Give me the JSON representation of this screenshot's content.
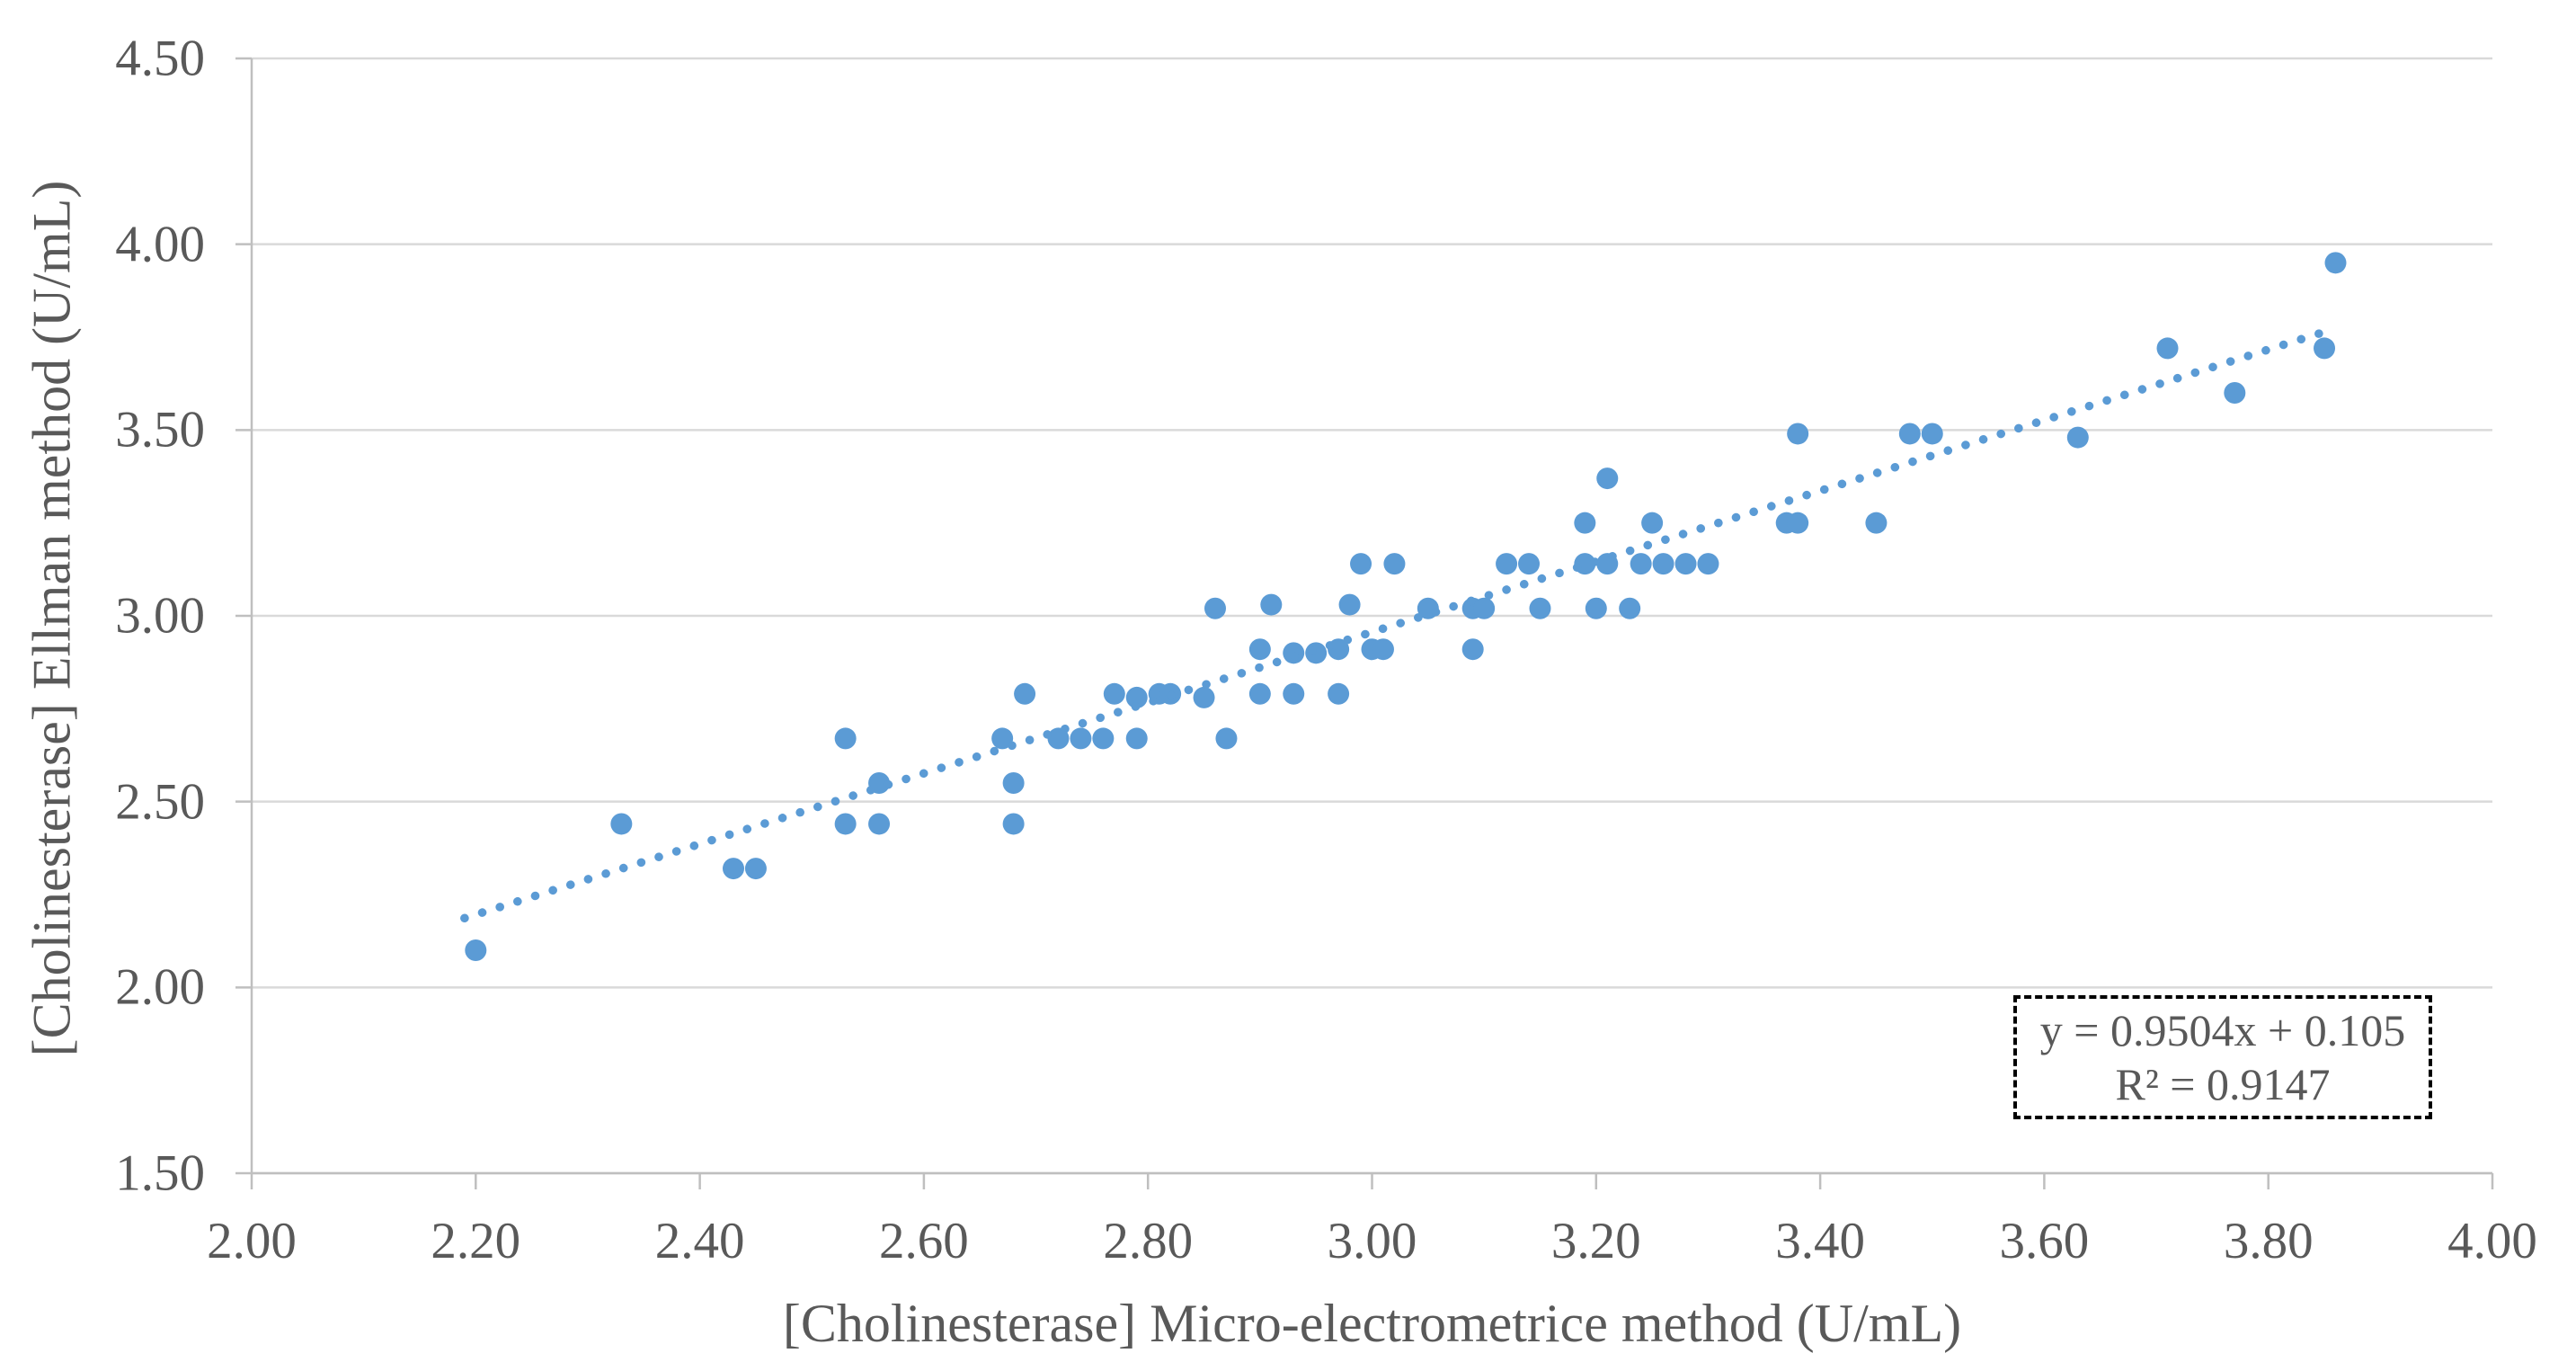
{
  "figure": {
    "background": "#FFFFFF",
    "text_color": "#595959",
    "grid_color": "#D9D9D9",
    "axis_color": "#BFBFBF"
  },
  "equation_box": {
    "line1": "y = 0.9504x + 0.105",
    "line2": "R² = 0.9147"
  },
  "chart_data": {
    "type": "scatter",
    "title": "",
    "xlabel": "[Cholinesterase] Micro-electrometrice method (U/mL)",
    "ylabel": "[Cholinesterase] Ellman method (U/mL)",
    "xlim": [
      2.0,
      4.0
    ],
    "ylim": [
      1.5,
      4.5
    ],
    "grid": "horizontal-only",
    "legend": "none",
    "marker_color": "#5B9BD5",
    "marker_radius": 12,
    "x_ticks": [
      {
        "value": 2.0,
        "label": "2.00"
      },
      {
        "value": 2.2,
        "label": "2.20"
      },
      {
        "value": 2.4,
        "label": "2.40"
      },
      {
        "value": 2.6,
        "label": "2.60"
      },
      {
        "value": 2.8,
        "label": "2.80"
      },
      {
        "value": 3.0,
        "label": "3.00"
      },
      {
        "value": 3.2,
        "label": "3.20"
      },
      {
        "value": 3.4,
        "label": "3.40"
      },
      {
        "value": 3.6,
        "label": "3.60"
      },
      {
        "value": 3.8,
        "label": "3.80"
      },
      {
        "value": 4.0,
        "label": "4.00"
      }
    ],
    "y_ticks": [
      {
        "value": 1.5,
        "label": "1.50"
      },
      {
        "value": 2.0,
        "label": "2.00"
      },
      {
        "value": 2.5,
        "label": "2.50"
      },
      {
        "value": 3.0,
        "label": "3.00"
      },
      {
        "value": 3.5,
        "label": "3.50"
      },
      {
        "value": 4.0,
        "label": "4.00"
      },
      {
        "value": 4.5,
        "label": "4.50"
      }
    ],
    "points": [
      [
        2.2,
        2.1
      ],
      [
        2.33,
        2.44
      ],
      [
        2.43,
        2.32
      ],
      [
        2.45,
        2.32
      ],
      [
        2.53,
        2.44
      ],
      [
        2.56,
        2.44
      ],
      [
        2.56,
        2.55
      ],
      [
        2.53,
        2.67
      ],
      [
        2.67,
        2.67
      ],
      [
        2.68,
        2.55
      ],
      [
        2.68,
        2.44
      ],
      [
        2.69,
        2.79
      ],
      [
        2.72,
        2.67
      ],
      [
        2.74,
        2.67
      ],
      [
        2.76,
        2.67
      ],
      [
        2.79,
        2.67
      ],
      [
        2.87,
        2.67
      ],
      [
        2.77,
        2.79
      ],
      [
        2.79,
        2.78
      ],
      [
        2.81,
        2.79
      ],
      [
        2.82,
        2.79
      ],
      [
        2.85,
        2.78
      ],
      [
        2.9,
        2.79
      ],
      [
        2.93,
        2.79
      ],
      [
        2.97,
        2.79
      ],
      [
        2.9,
        2.91
      ],
      [
        2.93,
        2.9
      ],
      [
        2.95,
        2.9
      ],
      [
        2.97,
        2.91
      ],
      [
        3.0,
        2.91
      ],
      [
        3.01,
        2.91
      ],
      [
        3.09,
        2.91
      ],
      [
        2.86,
        3.02
      ],
      [
        2.91,
        3.03
      ],
      [
        2.98,
        3.03
      ],
      [
        3.05,
        3.02
      ],
      [
        3.09,
        3.02
      ],
      [
        3.1,
        3.02
      ],
      [
        3.15,
        3.02
      ],
      [
        3.2,
        3.02
      ],
      [
        3.23,
        3.02
      ],
      [
        2.99,
        3.14
      ],
      [
        3.02,
        3.14
      ],
      [
        3.12,
        3.14
      ],
      [
        3.14,
        3.14
      ],
      [
        3.19,
        3.14
      ],
      [
        3.21,
        3.14
      ],
      [
        3.24,
        3.14
      ],
      [
        3.26,
        3.14
      ],
      [
        3.28,
        3.14
      ],
      [
        3.3,
        3.14
      ],
      [
        3.19,
        3.25
      ],
      [
        3.25,
        3.25
      ],
      [
        3.21,
        3.37
      ],
      [
        3.37,
        3.25
      ],
      [
        3.38,
        3.25
      ],
      [
        3.45,
        3.25
      ],
      [
        3.38,
        3.49
      ],
      [
        3.48,
        3.49
      ],
      [
        3.5,
        3.49
      ],
      [
        3.63,
        3.48
      ],
      [
        3.71,
        3.72
      ],
      [
        3.77,
        3.6
      ],
      [
        3.85,
        3.72
      ],
      [
        3.86,
        3.95
      ]
    ],
    "trendline": {
      "slope": 0.9504,
      "intercept": 0.105,
      "x_start": 2.19,
      "x_end": 3.855,
      "style": "dotted",
      "color": "#5B9BD5",
      "equation_label": "y = 0.9504x + 0.105",
      "r_squared_label": "R² = 0.9147"
    }
  }
}
